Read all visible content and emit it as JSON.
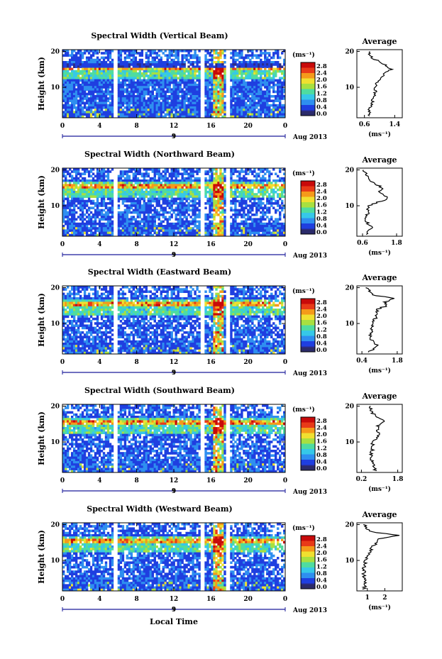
{
  "panels": [
    {
      "title": "Spectral Width (Vertical Beam)",
      "avg_xticks": [
        "0.6",
        "1.4"
      ],
      "avg_xrange": [
        0.4,
        1.6
      ]
    },
    {
      "title": "Spectral Width (Northward Beam)",
      "avg_xticks": [
        "0.6",
        "1.8"
      ],
      "avg_xrange": [
        0.4,
        2.0
      ]
    },
    {
      "title": "Spectral Width (Eastward Beam)",
      "avg_xticks": [
        "0.4",
        "1.8"
      ],
      "avg_xrange": [
        0.2,
        2.0
      ]
    },
    {
      "title": "Spectral Width (Southward Beam)",
      "avg_xticks": [
        "0.2",
        "1.8"
      ],
      "avg_xrange": [
        0.0,
        2.0
      ]
    },
    {
      "title": "Spectral Width (Westward Beam)",
      "avg_xticks": [
        "1",
        "2"
      ],
      "avg_xrange": [
        0.4,
        3.0
      ]
    }
  ],
  "common": {
    "ylabel": "Height (km)",
    "yticks": [
      "20",
      "10"
    ],
    "xticks": [
      "0",
      "4",
      "8",
      "12",
      "16",
      "20",
      "0"
    ],
    "date_tick": "9",
    "date_label": "Aug 2013",
    "unit": "(ms⁻¹)",
    "colorbar_ticks": [
      "2.8",
      "2.4",
      "2.0",
      "1.6",
      "1.2",
      "0.8",
      "0.4",
      "0.0"
    ],
    "avg_title": "Average",
    "avg_yticks": [
      "20",
      "10"
    ],
    "avg_xlabel": "(ms⁻¹)",
    "xlabel": "Local Time"
  },
  "chart_data": {
    "type": "heatmap",
    "x": {
      "label": "Local Time",
      "range": [
        0,
        24
      ],
      "unit": "h"
    },
    "y": {
      "label": "Height (km)",
      "range": [
        1.5,
        20.5
      ]
    },
    "z": {
      "label": "(ms⁻¹)",
      "range": [
        0.0,
        3.0
      ]
    },
    "gaps_hours": [
      [
        5.5,
        5.9
      ],
      [
        14.8,
        15.4
      ],
      [
        17.6,
        18.0
      ]
    ],
    "colors": [
      "#2b2b8a",
      "#1f3fe0",
      "#2f8ff0",
      "#36c8e8",
      "#4fdca0",
      "#a8e040",
      "#f0e030",
      "#f59a1a",
      "#e83a18",
      "#c80a0a"
    ],
    "average_profiles": [
      {
        "beam": "Vertical",
        "height_km": [
          2,
          4,
          6,
          8,
          10,
          12,
          14,
          15,
          16,
          17,
          18,
          20
        ],
        "width": [
          0.7,
          0.75,
          0.8,
          0.9,
          0.85,
          1.0,
          1.15,
          1.3,
          1.2,
          1.05,
          0.8,
          0.7
        ]
      },
      {
        "beam": "Northward",
        "height_km": [
          2,
          4,
          6,
          8,
          10,
          12,
          14,
          15,
          16,
          17,
          18,
          20
        ],
        "width": [
          0.7,
          0.9,
          0.7,
          0.8,
          0.8,
          1.5,
          1.2,
          1.3,
          1.1,
          0.8,
          0.8,
          0.6
        ]
      },
      {
        "beam": "Eastward",
        "height_km": [
          2,
          4,
          6,
          8,
          10,
          12,
          14,
          15,
          16,
          17,
          18,
          20
        ],
        "width": [
          0.7,
          1.0,
          0.7,
          0.8,
          0.8,
          1.0,
          1.0,
          1.4,
          1.3,
          1.7,
          0.8,
          0.6
        ]
      },
      {
        "beam": "Southward",
        "height_km": [
          2,
          4,
          6,
          8,
          10,
          12,
          14,
          15,
          16,
          17,
          18,
          20
        ],
        "width": [
          0.8,
          0.7,
          0.6,
          0.7,
          0.7,
          1.0,
          0.9,
          1.0,
          1.2,
          0.9,
          0.7,
          0.6
        ]
      },
      {
        "beam": "Westward",
        "height_km": [
          2,
          4,
          6,
          8,
          10,
          12,
          14,
          15,
          16,
          17,
          18,
          20
        ],
        "width": [
          0.8,
          0.9,
          0.8,
          0.8,
          0.9,
          1.1,
          1.3,
          1.6,
          1.7,
          2.8,
          1.2,
          0.8
        ]
      }
    ]
  }
}
